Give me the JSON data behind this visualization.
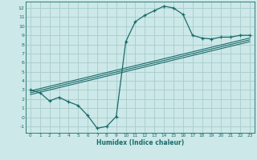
{
  "xlabel": "Humidex (Indice chaleur)",
  "bg_color": "#cce8e8",
  "grid_color": "#aacccc",
  "line_color": "#1a6b6b",
  "xlim": [
    -0.5,
    23.5
  ],
  "ylim": [
    -1.7,
    12.7
  ],
  "xticks": [
    0,
    1,
    2,
    3,
    4,
    5,
    6,
    7,
    8,
    9,
    10,
    11,
    12,
    13,
    14,
    15,
    16,
    17,
    18,
    19,
    20,
    21,
    22,
    23
  ],
  "yticks": [
    -1,
    0,
    1,
    2,
    3,
    4,
    5,
    6,
    7,
    8,
    9,
    10,
    11,
    12
  ],
  "curve_x": [
    0,
    1,
    2,
    3,
    4,
    5,
    6,
    7,
    8,
    9,
    10,
    11,
    12,
    13,
    14,
    15,
    16,
    17,
    18,
    19,
    20,
    21,
    22,
    23
  ],
  "curve_y": [
    3.0,
    2.7,
    1.8,
    2.2,
    1.7,
    1.3,
    0.2,
    -1.2,
    -1.0,
    0.1,
    8.3,
    10.5,
    11.2,
    11.7,
    12.2,
    12.0,
    11.3,
    9.0,
    8.7,
    8.6,
    8.8,
    8.8,
    9.0,
    9.0
  ],
  "line1_x": [
    0,
    23
  ],
  "line1_y": [
    2.9,
    8.7
  ],
  "line2_x": [
    0,
    23
  ],
  "line2_y": [
    2.7,
    8.5
  ],
  "line3_x": [
    0,
    23
  ],
  "line3_y": [
    2.5,
    8.3
  ]
}
